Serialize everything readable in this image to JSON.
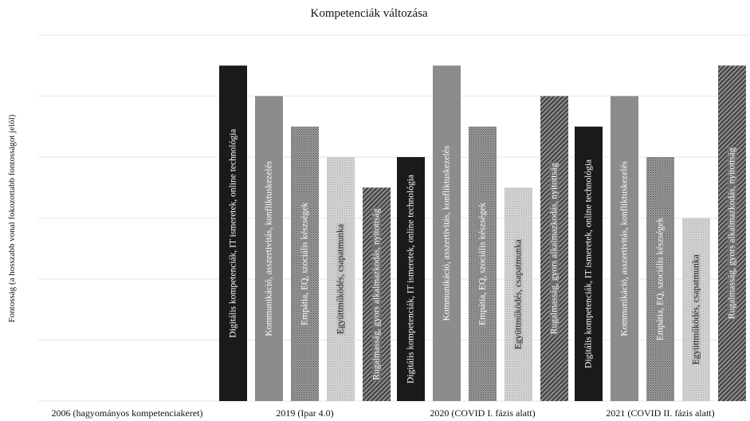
{
  "chart_data": {
    "type": "bar",
    "title": "Kompetenciák változása",
    "xlabel": "",
    "ylabel": "Fontosság (a hosszabb vonal fokozottabb fontosságot jelöl)",
    "ylim": [
      0,
      6
    ],
    "grid": true,
    "legend": "none",
    "categories": [
      "2006 (hagyományos kompetenciakeret)",
      "2019 (Ipar 4.0)",
      "2020 (COVID I. fázis alatt)",
      "2021 (COVID II. fázis alatt)"
    ],
    "series": [
      {
        "name": "Digitális kompetenciák, IT ismeretek, online technológia",
        "pattern": "solid-black",
        "color": "#1a1a1a",
        "values": [
          0,
          5.5,
          4,
          4.5
        ]
      },
      {
        "name": "Kommunikáció, asszertivitás, konfliktuskezelés",
        "pattern": "solid-gray",
        "color": "#8c8c8c",
        "values": [
          0,
          5,
          5.5,
          5
        ]
      },
      {
        "name": "Empátia, EQ, szociális készségek",
        "pattern": "dark-dots",
        "color": "#8a8a8a",
        "values": [
          0,
          4.5,
          4.5,
          4
        ]
      },
      {
        "name": "Együttműködés, csapatmunka",
        "pattern": "light-dots",
        "color": "#cfcfcf",
        "values": [
          0,
          4,
          3.5,
          3
        ]
      },
      {
        "name": "Rugalmasság, gyors alkalmazkodás, nyitottság",
        "pattern": "diagonal-hatch",
        "color": "#6e6e6e",
        "values": [
          0,
          3.5,
          5,
          5.5
        ]
      }
    ]
  }
}
